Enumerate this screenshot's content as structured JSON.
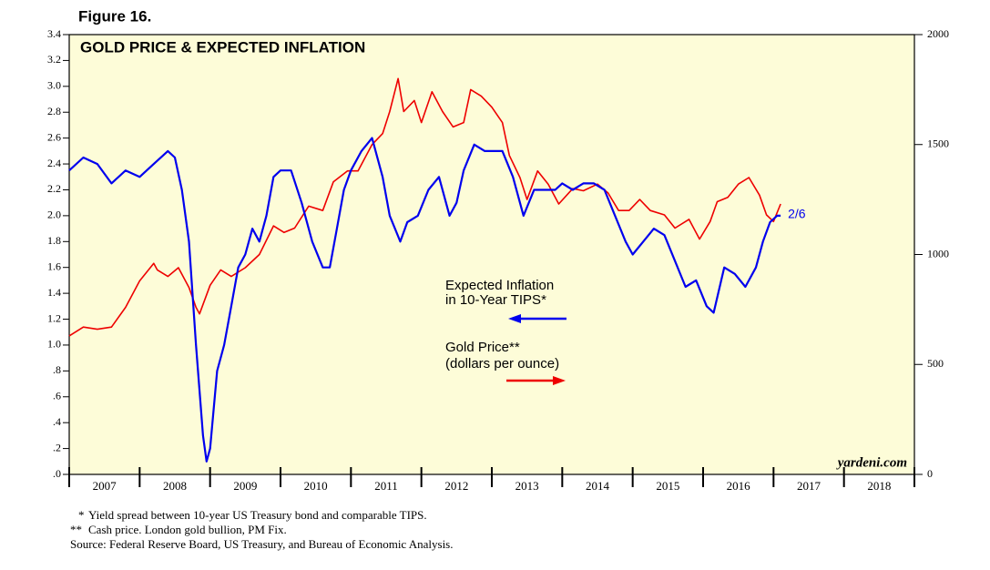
{
  "figure_label": "Figure 16.",
  "chart_data": {
    "type": "line",
    "title": "GOLD PRICE & EXPECTED INFLATION",
    "xlim": [
      2007,
      2019
    ],
    "xticks": [
      {
        "value": 2007.5,
        "label": "2007"
      },
      {
        "value": 2008.5,
        "label": "2008"
      },
      {
        "value": 2009.5,
        "label": "2009"
      },
      {
        "value": 2010.5,
        "label": "2010"
      },
      {
        "value": 2011.5,
        "label": "2011"
      },
      {
        "value": 2012.5,
        "label": "2012"
      },
      {
        "value": 2013.5,
        "label": "2013"
      },
      {
        "value": 2014.5,
        "label": "2014"
      },
      {
        "value": 2015.5,
        "label": "2015"
      },
      {
        "value": 2016.5,
        "label": "2016"
      },
      {
        "value": 2017.5,
        "label": "2017"
      },
      {
        "value": 2018.5,
        "label": "2018"
      }
    ],
    "ylim": [
      0,
      3.4
    ],
    "yticks": [
      {
        "value": 0,
        "label": ".0"
      },
      {
        "value": 0.2,
        "label": ".2"
      },
      {
        "value": 0.4,
        "label": ".4"
      },
      {
        "value": 0.6,
        "label": ".6"
      },
      {
        "value": 0.8,
        "label": ".8"
      },
      {
        "value": 1,
        "label": "1.0"
      },
      1.2,
      1.4,
      1.6,
      1.8,
      {
        "value": 2,
        "label": "2.0"
      },
      2.2,
      2.4,
      2.6,
      2.8,
      {
        "value": 3,
        "label": "3.0"
      },
      3.2,
      3.4
    ],
    "y2lim": [
      0,
      2000
    ],
    "y2ticks": [
      0,
      500,
      1000,
      1500,
      2000
    ],
    "series": [
      {
        "name": [
          "Expected Inflation",
          "in 10-Year TIPS*"
        ],
        "color": "#0000ee",
        "axis": "y",
        "x": [
          2007.0,
          2007.2,
          2007.4,
          2007.6,
          2007.8,
          2008.0,
          2008.2,
          2008.4,
          2008.5,
          2008.6,
          2008.7,
          2008.8,
          2008.9,
          2008.95,
          2009.0,
          2009.1,
          2009.2,
          2009.3,
          2009.4,
          2009.5,
          2009.6,
          2009.7,
          2009.8,
          2009.9,
          2010.0,
          2010.15,
          2010.3,
          2010.45,
          2010.6,
          2010.7,
          2010.8,
          2010.9,
          2011.0,
          2011.15,
          2011.3,
          2011.45,
          2011.55,
          2011.7,
          2011.8,
          2011.95,
          2012.1,
          2012.25,
          2012.4,
          2012.5,
          2012.6,
          2012.75,
          2012.9,
          2013.0,
          2013.15,
          2013.3,
          2013.45,
          2013.6,
          2013.75,
          2013.9,
          2014.0,
          2014.15,
          2014.3,
          2014.45,
          2014.6,
          2014.75,
          2014.9,
          2015.0,
          2015.15,
          2015.3,
          2015.45,
          2015.6,
          2015.75,
          2015.9,
          2016.05,
          2016.15,
          2016.3,
          2016.45,
          2016.6,
          2016.75,
          2016.85,
          2016.95,
          2017.05,
          2017.1
        ],
        "values": [
          2.35,
          2.45,
          2.4,
          2.25,
          2.35,
          2.3,
          2.4,
          2.5,
          2.45,
          2.2,
          1.8,
          1.0,
          0.3,
          0.1,
          0.2,
          0.8,
          1.0,
          1.3,
          1.6,
          1.7,
          1.9,
          1.8,
          2.0,
          2.3,
          2.35,
          2.35,
          2.1,
          1.8,
          1.6,
          1.6,
          1.9,
          2.2,
          2.35,
          2.5,
          2.6,
          2.3,
          2.0,
          1.8,
          1.95,
          2.0,
          2.2,
          2.3,
          2.0,
          2.1,
          2.35,
          2.55,
          2.5,
          2.5,
          2.5,
          2.3,
          2.0,
          2.2,
          2.2,
          2.2,
          2.25,
          2.2,
          2.25,
          2.25,
          2.2,
          2.0,
          1.8,
          1.7,
          1.8,
          1.9,
          1.85,
          1.65,
          1.45,
          1.5,
          1.3,
          1.25,
          1.6,
          1.55,
          1.45,
          1.6,
          1.8,
          1.95,
          2.0,
          2.0
        ]
      },
      {
        "name": [
          "Gold Price**",
          "(dollars per ounce)"
        ],
        "color": "#ee0000",
        "axis": "y2",
        "x": [
          2007.0,
          2007.2,
          2007.4,
          2007.6,
          2007.8,
          2008.0,
          2008.2,
          2008.25,
          2008.4,
          2008.55,
          2008.7,
          2008.8,
          2008.85,
          2009.0,
          2009.15,
          2009.3,
          2009.5,
          2009.7,
          2009.9,
          2010.05,
          2010.2,
          2010.4,
          2010.6,
          2010.75,
          2010.95,
          2011.1,
          2011.3,
          2011.45,
          2011.55,
          2011.67,
          2011.75,
          2011.9,
          2012.0,
          2012.15,
          2012.3,
          2012.45,
          2012.6,
          2012.7,
          2012.85,
          2013.0,
          2013.15,
          2013.25,
          2013.4,
          2013.5,
          2013.65,
          2013.8,
          2013.95,
          2014.15,
          2014.3,
          2014.5,
          2014.65,
          2014.8,
          2014.95,
          2015.1,
          2015.25,
          2015.45,
          2015.6,
          2015.8,
          2015.95,
          2016.1,
          2016.2,
          2016.35,
          2016.5,
          2016.65,
          2016.8,
          2016.9,
          2017.0,
          2017.1
        ],
        "values": [
          630,
          670,
          660,
          670,
          760,
          880,
          960,
          930,
          900,
          940,
          850,
          760,
          730,
          860,
          930,
          900,
          940,
          1000,
          1130,
          1100,
          1120,
          1220,
          1200,
          1330,
          1380,
          1380,
          1500,
          1550,
          1650,
          1800,
          1650,
          1700,
          1600,
          1740,
          1650,
          1580,
          1600,
          1750,
          1720,
          1670,
          1600,
          1450,
          1350,
          1250,
          1380,
          1320,
          1230,
          1300,
          1290,
          1320,
          1280,
          1200,
          1200,
          1250,
          1200,
          1180,
          1120,
          1160,
          1070,
          1150,
          1240,
          1260,
          1320,
          1350,
          1270,
          1180,
          1150,
          1230
        ]
      }
    ],
    "end_label": "2/6",
    "watermark": "yardeni.com"
  },
  "footnotes": [
    {
      "marker": "*",
      "text": "Yield spread between 10-year US Treasury bond and comparable TIPS."
    },
    {
      "marker": "**",
      "text": "Cash price. London gold bullion, PM Fix."
    }
  ],
  "source": "Source: Federal Reserve Board, US Treasury, and Bureau of Economic Analysis."
}
